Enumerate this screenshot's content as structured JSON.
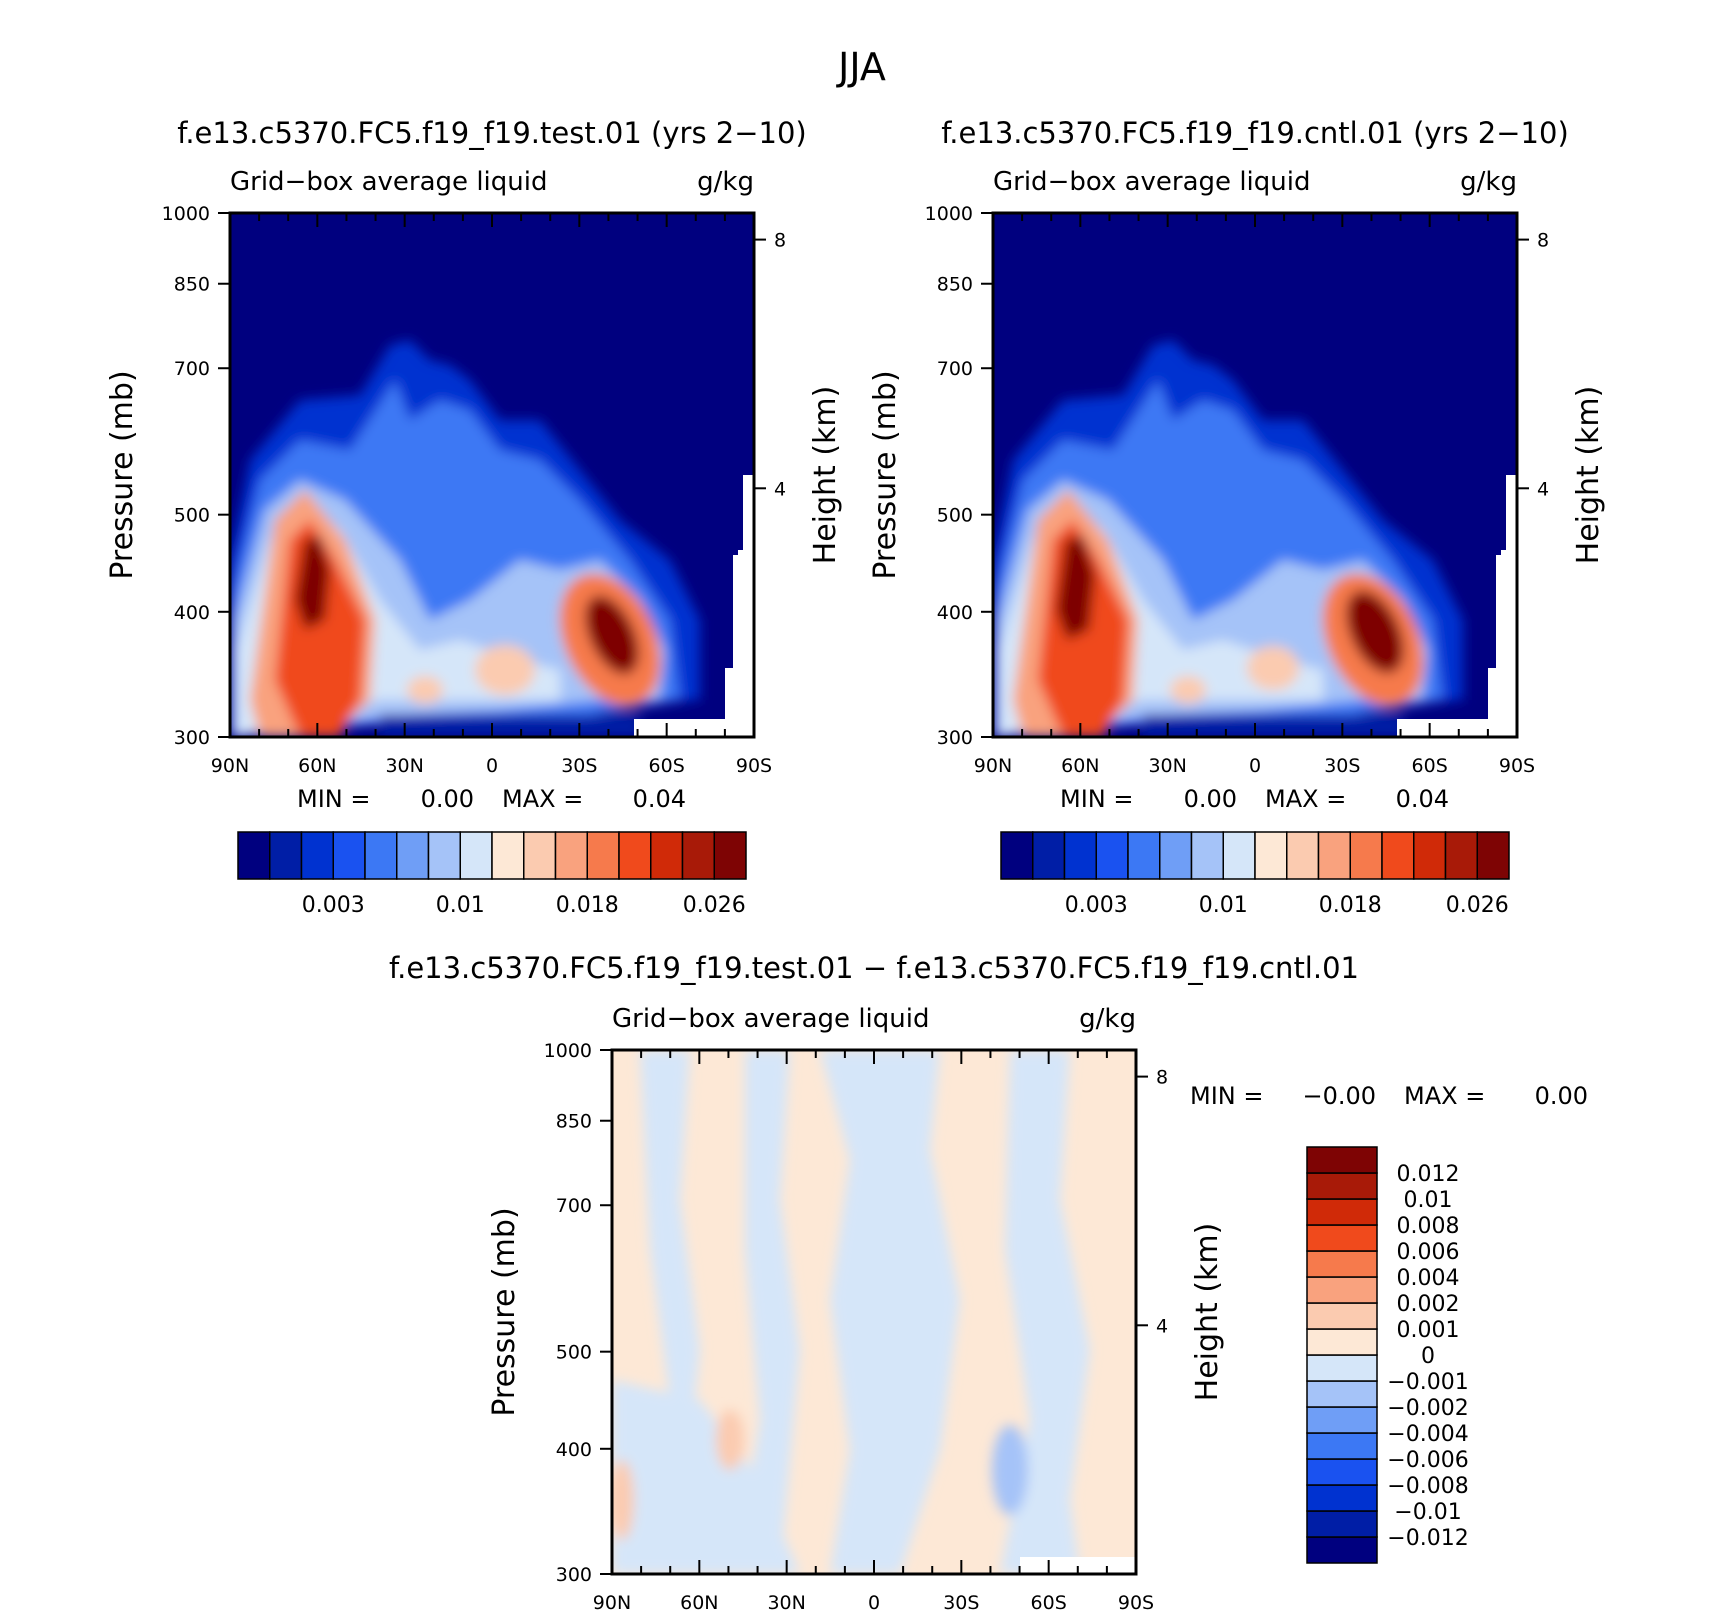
{
  "title": "JJA",
  "palettes": {
    "main": [
      "#00007f",
      "#001ea6",
      "#0032d0",
      "#1a52f0",
      "#3c78f4",
      "#6f9ef6",
      "#a5c3f8",
      "#d5e6f9",
      "#fde8d6",
      "#fbcbb0",
      "#f9a27e",
      "#f67a4c",
      "#f04a1c",
      "#d02a08",
      "#a81a08",
      "#7e0404"
    ],
    "diff": [
      "#00007f",
      "#001ea6",
      "#0032d0",
      "#1a52f0",
      "#3c78f4",
      "#6f9ef6",
      "#a5c3f8",
      "#d5e6f9",
      "#fde8d6",
      "#fbcbb0",
      "#f9a27e",
      "#f67a4c",
      "#f04a1c",
      "#d02a08",
      "#a81a08",
      "#7e0404"
    ]
  },
  "chart_data": [
    {
      "type": "heatmap",
      "title": "f.e13.c5370.FC5.f19_f19.test.01 (yrs 2−10)",
      "subtitle_left": "Grid−box average liquid",
      "subtitle_right": "g/kg",
      "xlabel": "",
      "ylabel": "Pressure (mb)",
      "y2label": "Height (km)",
      "x_ticks": [
        "90N",
        "60N",
        "30N",
        "0",
        "30S",
        "60S",
        "90S"
      ],
      "y_ticks": [
        300,
        400,
        500,
        700,
        850,
        1000
      ],
      "y2_ticks": [
        8,
        4
      ],
      "ylim": [
        1000,
        300
      ],
      "y_scale": "log",
      "stats": {
        "min_label": "MIN =",
        "min": "0.00",
        "max_label": "MAX =",
        "max": "0.04"
      },
      "colorbar": {
        "orientation": "horizontal",
        "labels": [
          "0.003",
          "0.01",
          "0.018",
          "0.026"
        ]
      }
    },
    {
      "type": "heatmap",
      "title": "f.e13.c5370.FC5.f19_f19.cntl.01 (yrs 2−10)",
      "subtitle_left": "Grid−box average liquid",
      "subtitle_right": "g/kg",
      "xlabel": "",
      "ylabel": "Pressure (mb)",
      "y2label": "Height (km)",
      "x_ticks": [
        "90N",
        "60N",
        "30N",
        "0",
        "30S",
        "60S",
        "90S"
      ],
      "y_ticks": [
        300,
        400,
        500,
        700,
        850,
        1000
      ],
      "y2_ticks": [
        8,
        4
      ],
      "ylim": [
        1000,
        300
      ],
      "y_scale": "log",
      "stats": {
        "min_label": "MIN =",
        "min": "0.00",
        "max_label": "MAX =",
        "max": "0.04"
      },
      "colorbar": {
        "orientation": "horizontal",
        "labels": [
          "0.003",
          "0.01",
          "0.018",
          "0.026"
        ]
      }
    },
    {
      "type": "heatmap",
      "title": "f.e13.c5370.FC5.f19_f19.test.01 − f.e13.c5370.FC5.f19_f19.cntl.01",
      "subtitle_left": "Grid−box average liquid",
      "subtitle_right": "g/kg",
      "xlabel": "",
      "ylabel": "Pressure (mb)",
      "y2label": "Height (km)",
      "x_ticks": [
        "90N",
        "60N",
        "30N",
        "0",
        "30S",
        "60S",
        "90S"
      ],
      "y_ticks": [
        300,
        400,
        500,
        700,
        850,
        1000
      ],
      "y2_ticks": [
        8,
        4
      ],
      "ylim": [
        1000,
        300
      ],
      "y_scale": "log",
      "stats": {
        "min_label": "MIN =",
        "min": "−0.00",
        "max_label": "MAX =",
        "max": "0.00"
      },
      "colorbar": {
        "orientation": "vertical",
        "labels": [
          "0.012",
          "0.01",
          "0.008",
          "0.006",
          "0.004",
          "0.002",
          "0.001",
          "0",
          "−0.001",
          "−0.002",
          "−0.004",
          "−0.006",
          "−0.008",
          "−0.01",
          "−0.012"
        ]
      }
    }
  ]
}
